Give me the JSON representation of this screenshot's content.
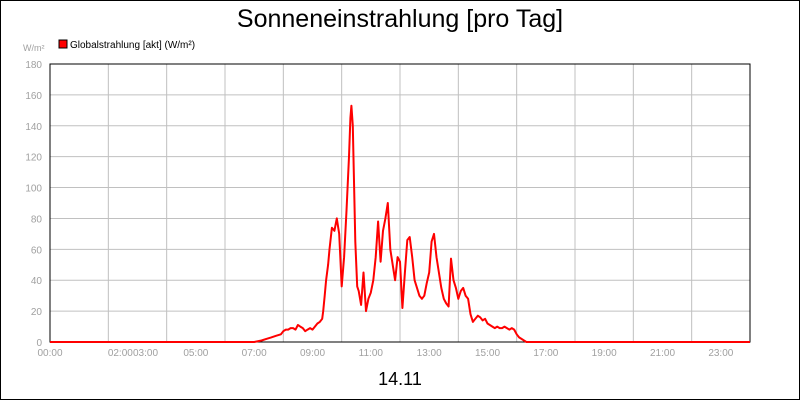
{
  "chart_data": {
    "type": "line",
    "title": "Sonneneinstrahlung [pro Tag]",
    "xlabel": "14.11",
    "ylabel": "W/m²",
    "ylim": [
      0,
      180
    ],
    "yticks": [
      0,
      20,
      40,
      60,
      80,
      100,
      120,
      140,
      160,
      180
    ],
    "xlim": [
      "00:00",
      "24:00"
    ],
    "xticks": [
      "00:00",
      "02:00",
      "03:00",
      "05:00",
      "07:00",
      "09:00",
      "11:00",
      "13:00",
      "15:00",
      "17:00",
      "19:00",
      "21:00",
      "23:00"
    ],
    "grid": true,
    "legend_position": "top-left",
    "series": [
      {
        "name": "Globalstrahlung [akt] (W/m²)",
        "color": "#ff0000",
        "x": [
          "00:00",
          "07:00",
          "07:15",
          "07:25",
          "07:35",
          "07:45",
          "07:55",
          "08:00",
          "08:05",
          "08:10",
          "08:15",
          "08:20",
          "08:25",
          "08:30",
          "08:35",
          "08:40",
          "08:45",
          "08:50",
          "08:55",
          "09:00",
          "09:05",
          "09:10",
          "09:15",
          "09:20",
          "09:22",
          "09:25",
          "09:28",
          "09:32",
          "09:35",
          "09:40",
          "09:45",
          "09:50",
          "09:55",
          "10:00",
          "10:05",
          "10:10",
          "10:15",
          "10:18",
          "10:20",
          "10:23",
          "10:25",
          "10:28",
          "10:32",
          "10:35",
          "10:40",
          "10:45",
          "10:50",
          "10:55",
          "11:00",
          "11:05",
          "11:10",
          "11:15",
          "11:20",
          "11:25",
          "11:30",
          "11:35",
          "11:40",
          "11:45",
          "11:50",
          "11:55",
          "12:00",
          "12:05",
          "12:10",
          "12:15",
          "12:20",
          "12:25",
          "12:30",
          "12:35",
          "12:40",
          "12:45",
          "12:50",
          "12:55",
          "13:00",
          "13:05",
          "13:10",
          "13:15",
          "13:20",
          "13:25",
          "13:30",
          "13:35",
          "13:40",
          "13:45",
          "13:50",
          "13:55",
          "14:00",
          "14:05",
          "14:10",
          "14:15",
          "14:20",
          "14:25",
          "14:30",
          "14:35",
          "14:40",
          "14:45",
          "14:50",
          "14:55",
          "15:00",
          "15:10",
          "15:15",
          "15:20",
          "15:25",
          "15:30",
          "15:35",
          "15:40",
          "15:45",
          "15:50",
          "15:55",
          "16:00",
          "16:05",
          "16:10",
          "16:15",
          "16:20",
          "16:25",
          "16:30",
          "16:40",
          "24:00"
        ],
        "values": [
          0,
          0,
          1,
          2,
          3,
          4,
          5,
          7,
          8,
          8,
          9,
          9,
          8,
          11,
          10,
          9,
          7,
          8,
          9,
          8,
          10,
          12,
          13,
          15,
          20,
          30,
          40,
          50,
          60,
          74,
          72,
          80,
          70,
          36,
          55,
          85,
          120,
          145,
          153,
          140,
          110,
          65,
          36,
          33,
          24,
          45,
          20,
          28,
          32,
          40,
          55,
          78,
          52,
          72,
          80,
          90,
          60,
          50,
          40,
          55,
          52,
          22,
          45,
          66,
          68,
          55,
          40,
          35,
          30,
          28,
          30,
          38,
          45,
          65,
          70,
          55,
          45,
          35,
          28,
          25,
          23,
          54,
          40,
          35,
          28,
          33,
          35,
          30,
          28,
          18,
          13,
          15,
          17,
          16,
          14,
          15,
          12,
          10,
          9,
          10,
          9,
          9,
          10,
          9,
          8,
          9,
          8,
          5,
          3,
          2,
          1,
          0,
          0,
          0,
          0,
          0
        ]
      }
    ]
  }
}
